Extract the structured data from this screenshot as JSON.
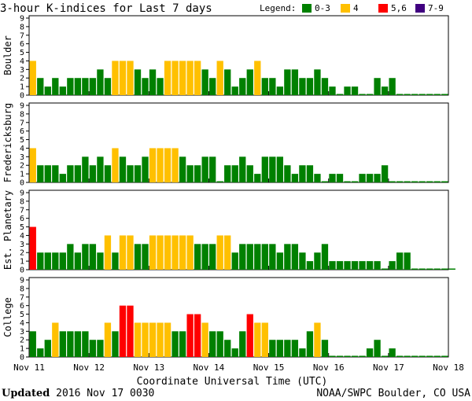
{
  "chart_data": {
    "type": "bar",
    "title": "3-hour K-indices for Last 7 days",
    "legend": {
      "label": "Legend:",
      "placement": "top-right",
      "items": [
        {
          "label": "0-3",
          "color": "#008000"
        },
        {
          "label": "4",
          "color": "#ffc000"
        },
        {
          "label": "5,6",
          "color": "#ff0000"
        },
        {
          "label": "7-9",
          "color": "#400080"
        }
      ]
    },
    "colors": {
      "low": "#008000",
      "moderate": "#ffc000",
      "storm": "#ff0000",
      "severe": "#400080"
    },
    "y_range": [
      0,
      9
    ],
    "y_ticks": [
      "0",
      "1",
      "2",
      "3",
      "4",
      "5",
      "6",
      "7",
      "8",
      "9"
    ],
    "x_ticks": [
      "Nov 11",
      "Nov 12",
      "Nov 13",
      "Nov 14",
      "Nov 15",
      "Nov 16",
      "Nov 17",
      "Nov 18"
    ],
    "xlabel": "Coordinate Universal Time (UTC)",
    "grid": false,
    "panels": [
      {
        "name": "Boulder",
        "values": [
          4,
          2,
          1,
          2,
          1,
          2,
          2,
          2,
          2,
          3,
          2,
          4,
          4,
          4,
          3,
          2,
          3,
          2,
          4,
          4,
          4,
          4,
          4,
          3,
          2,
          4,
          3,
          1,
          2,
          3,
          4,
          2,
          2,
          1,
          3,
          3,
          2,
          2,
          3,
          2,
          1,
          0,
          1,
          1,
          0,
          0,
          2,
          1,
          2,
          0,
          0,
          0,
          0,
          0,
          0,
          0
        ]
      },
      {
        "name": "Fredericksburg",
        "values": [
          4,
          2,
          2,
          2,
          1,
          2,
          2,
          3,
          2,
          3,
          2,
          4,
          3,
          2,
          2,
          3,
          4,
          4,
          4,
          4,
          3,
          2,
          2,
          3,
          3,
          0,
          2,
          2,
          3,
          2,
          1,
          3,
          3,
          3,
          2,
          1,
          2,
          2,
          1,
          0,
          1,
          1,
          0,
          0,
          1,
          1,
          1,
          2,
          0,
          0,
          0,
          0,
          0,
          0,
          0,
          0
        ]
      },
      {
        "name": "Est. Planetary",
        "values": [
          5,
          2,
          2,
          2,
          2,
          3,
          2,
          3,
          3,
          2,
          4,
          2,
          4,
          4,
          3,
          3,
          4,
          4,
          4,
          4,
          4,
          4,
          3,
          3,
          3,
          4,
          4,
          2,
          3,
          3,
          3,
          3,
          3,
          2,
          3,
          3,
          2,
          1,
          2,
          3,
          1,
          1,
          1,
          1,
          1,
          1,
          1,
          0,
          1,
          2,
          2,
          0,
          0,
          0,
          0,
          0,
          0
        ]
      },
      {
        "name": "College",
        "values": [
          3,
          1,
          2,
          4,
          3,
          3,
          3,
          3,
          2,
          2,
          4,
          3,
          6,
          6,
          4,
          4,
          4,
          4,
          4,
          3,
          3,
          5,
          5,
          4,
          3,
          3,
          2,
          1,
          3,
          5,
          4,
          4,
          2,
          2,
          2,
          2,
          1,
          3,
          4,
          2,
          0,
          0,
          0,
          0,
          0,
          1,
          2,
          0,
          1,
          0,
          0,
          0,
          0,
          0,
          0,
          0
        ]
      }
    ]
  },
  "footer": {
    "updated_label": "Updated",
    "updated_value": " 2016 Nov 17 0030",
    "credit": "NOAA/SWPC Boulder, CO USA"
  }
}
